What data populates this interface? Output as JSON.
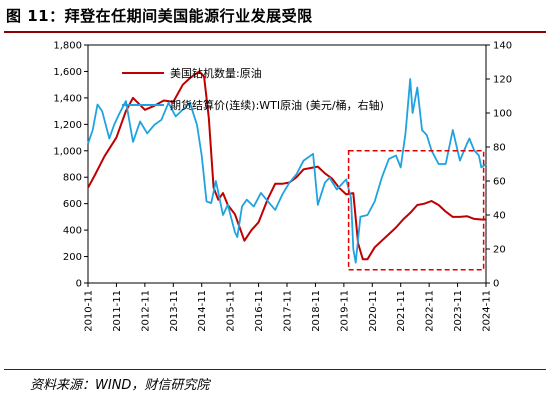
{
  "figure": {
    "title": "图 11：拜登在任期间美国能源行业发展受限",
    "source": "资料来源：WIND，财信研究院"
  },
  "colors": {
    "rigs": "#c00000",
    "wti": "#1fa3e0",
    "highlight": "#e00000"
  },
  "chart_data": {
    "type": "line",
    "title": "",
    "x_ticks": [
      "2010-11",
      "2011-11",
      "2012-11",
      "2013-11",
      "2014-11",
      "2015-11",
      "2016-11",
      "2017-11",
      "2018-11",
      "2019-11",
      "2020-11",
      "2021-11",
      "2022-11",
      "2023-11",
      "2024-11"
    ],
    "y_left": {
      "min": 0,
      "max": 1800,
      "step": 200,
      "tick_labels": [
        "0",
        "200",
        "400",
        "600",
        "800",
        "1,000",
        "1,200",
        "1,400",
        "1,600",
        "1,800"
      ]
    },
    "y_right": {
      "min": 0,
      "max": 140,
      "step": 20,
      "tick_labels": [
        "0",
        "20",
        "40",
        "60",
        "80",
        "100",
        "120",
        "140"
      ]
    },
    "legend_position": "top-left",
    "highlight_box": {
      "x_start": "2020-01",
      "x_end": "2024-10",
      "y_left_min": 100,
      "y_left_max": 1000
    },
    "series": [
      {
        "name": "美国钻机数量:原油",
        "axis": "left",
        "points": [
          [
            "2010-11",
            720
          ],
          [
            "2011-02",
            820
          ],
          [
            "2011-06",
            960
          ],
          [
            "2011-11",
            1100
          ],
          [
            "2012-03",
            1300
          ],
          [
            "2012-06",
            1400
          ],
          [
            "2012-11",
            1310
          ],
          [
            "2013-03",
            1340
          ],
          [
            "2013-07",
            1380
          ],
          [
            "2013-11",
            1370
          ],
          [
            "2014-03",
            1500
          ],
          [
            "2014-06",
            1550
          ],
          [
            "2014-10",
            1600
          ],
          [
            "2014-12",
            1560
          ],
          [
            "2015-02",
            1250
          ],
          [
            "2015-04",
            720
          ],
          [
            "2015-06",
            630
          ],
          [
            "2015-08",
            680
          ],
          [
            "2015-10",
            590
          ],
          [
            "2016-01",
            520
          ],
          [
            "2016-05",
            320
          ],
          [
            "2016-08",
            400
          ],
          [
            "2016-11",
            460
          ],
          [
            "2017-03",
            640
          ],
          [
            "2017-06",
            750
          ],
          [
            "2017-09",
            750
          ],
          [
            "2017-12",
            760
          ],
          [
            "2018-03",
            800
          ],
          [
            "2018-06",
            860
          ],
          [
            "2018-09",
            870
          ],
          [
            "2018-12",
            880
          ],
          [
            "2019-03",
            830
          ],
          [
            "2019-06",
            790
          ],
          [
            "2019-09",
            720
          ],
          [
            "2019-12",
            670
          ],
          [
            "2020-03",
            680
          ],
          [
            "2020-05",
            300
          ],
          [
            "2020-07",
            180
          ],
          [
            "2020-09",
            180
          ],
          [
            "2020-12",
            270
          ],
          [
            "2021-03",
            320
          ],
          [
            "2021-06",
            370
          ],
          [
            "2021-09",
            420
          ],
          [
            "2021-12",
            480
          ],
          [
            "2022-03",
            530
          ],
          [
            "2022-06",
            590
          ],
          [
            "2022-09",
            600
          ],
          [
            "2022-12",
            620
          ],
          [
            "2023-03",
            590
          ],
          [
            "2023-06",
            540
          ],
          [
            "2023-09",
            500
          ],
          [
            "2023-12",
            500
          ],
          [
            "2024-03",
            505
          ],
          [
            "2024-06",
            485
          ],
          [
            "2024-09",
            480
          ],
          [
            "2024-11",
            480
          ]
        ]
      },
      {
        "name": "期货结算价(连续):WTI原油 (美元/桶，右轴)",
        "axis": "right",
        "points": [
          [
            "2010-11",
            82
          ],
          [
            "2011-01",
            90
          ],
          [
            "2011-03",
            105
          ],
          [
            "2011-05",
            101
          ],
          [
            "2011-08",
            85
          ],
          [
            "2011-10",
            93
          ],
          [
            "2011-12",
            99
          ],
          [
            "2012-03",
            107
          ],
          [
            "2012-06",
            83
          ],
          [
            "2012-09",
            95
          ],
          [
            "2012-12",
            88
          ],
          [
            "2013-03",
            93
          ],
          [
            "2013-06",
            96
          ],
          [
            "2013-09",
            106
          ],
          [
            "2013-12",
            98
          ],
          [
            "2014-03",
            102
          ],
          [
            "2014-06",
            106
          ],
          [
            "2014-09",
            93
          ],
          [
            "2014-11",
            75
          ],
          [
            "2015-01",
            48
          ],
          [
            "2015-03",
            47
          ],
          [
            "2015-05",
            60
          ],
          [
            "2015-08",
            40
          ],
          [
            "2015-10",
            46
          ],
          [
            "2016-01",
            30
          ],
          [
            "2016-02",
            27
          ],
          [
            "2016-04",
            45
          ],
          [
            "2016-06",
            49
          ],
          [
            "2016-09",
            45
          ],
          [
            "2016-12",
            53
          ],
          [
            "2017-03",
            48
          ],
          [
            "2017-06",
            43
          ],
          [
            "2017-09",
            52
          ],
          [
            "2017-12",
            59
          ],
          [
            "2018-03",
            64
          ],
          [
            "2018-06",
            72
          ],
          [
            "2018-10",
            76
          ],
          [
            "2018-12",
            46
          ],
          [
            "2019-03",
            59
          ],
          [
            "2019-05",
            62
          ],
          [
            "2019-08",
            55
          ],
          [
            "2019-12",
            61
          ],
          [
            "2020-02",
            50
          ],
          [
            "2020-03",
            20
          ],
          [
            "2020-04",
            12
          ],
          [
            "2020-06",
            39
          ],
          [
            "2020-09",
            40
          ],
          [
            "2020-12",
            48
          ],
          [
            "2021-03",
            62
          ],
          [
            "2021-06",
            73
          ],
          [
            "2021-09",
            75
          ],
          [
            "2021-11",
            68
          ],
          [
            "2022-01",
            88
          ],
          [
            "2022-03",
            120
          ],
          [
            "2022-04",
            100
          ],
          [
            "2022-06",
            115
          ],
          [
            "2022-08",
            90
          ],
          [
            "2022-10",
            87
          ],
          [
            "2022-12",
            78
          ],
          [
            "2023-03",
            70
          ],
          [
            "2023-06",
            70
          ],
          [
            "2023-09",
            90
          ],
          [
            "2023-12",
            72
          ],
          [
            "2024-03",
            82
          ],
          [
            "2024-04",
            85
          ],
          [
            "2024-06",
            78
          ],
          [
            "2024-08",
            75
          ],
          [
            "2024-09",
            68
          ],
          [
            "2024-11",
            70
          ]
        ]
      }
    ]
  }
}
